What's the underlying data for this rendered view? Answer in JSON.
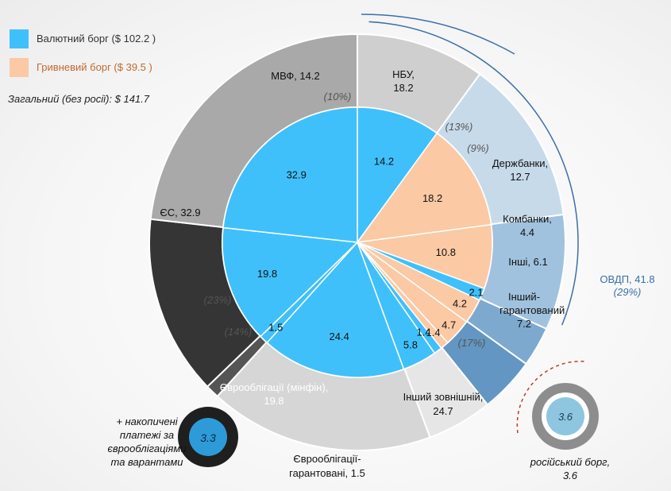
{
  "legend": {
    "fx_label": "Валютний борг ($ 102.2 )",
    "uah_label": "Гривневий борг ($ 39.5 )",
    "total_label": "Загальний (без росії): $ 141.7"
  },
  "colors": {
    "fx": "#40c0fb",
    "uah": "#fbc9a4",
    "imf": "#cfcfcf",
    "eu": "#a9a9a9",
    "eurobonds": "#353535",
    "eurobonds_guar": "#555555",
    "other_ext": "#d6d6d6",
    "other_guar": "#e6e6e6",
    "nbu": "#c7daea",
    "statebanks": "#a0c2df",
    "commbanks": "#7ea9cf",
    "others": "#6396c2",
    "russian": "#8ec6df"
  },
  "chart_data": {
    "type": "pie",
    "title": "",
    "inner_ring": [
      {
        "label": "14.2",
        "value": 14.2,
        "kind": "fx"
      },
      {
        "label": "18.2",
        "value": 18.2,
        "kind": "uah"
      },
      {
        "label": "10.8",
        "value": 10.8,
        "kind": "uah"
      },
      {
        "label": "2.1",
        "value": 2.1,
        "kind": "fx"
      },
      {
        "label": "4.2",
        "value": 4.2,
        "kind": "uah"
      },
      {
        "label": "4.7",
        "value": 4.7,
        "kind": "uah"
      },
      {
        "label": "1.4",
        "value": 1.4,
        "kind": "uah"
      },
      {
        "label": "1.4",
        "value": 1.4,
        "kind": "fx"
      },
      {
        "label": "5.8",
        "value": 5.8,
        "kind": "fx"
      },
      {
        "label": "24.4",
        "value": 24.4,
        "kind": "fx"
      },
      {
        "label": "1.5",
        "value": 1.5,
        "kind": "fx"
      },
      {
        "label": "19.8",
        "value": 19.8,
        "kind": "fx"
      },
      {
        "label": "32.9",
        "value": 32.9,
        "kind": "fx"
      }
    ],
    "outer_ring": [
      {
        "label": "МВФ, 14.2",
        "value": 14.2,
        "share": "(10%)",
        "color": "imf"
      },
      {
        "label": "НБУ, 18.2",
        "value": 18.2,
        "share": "(13%)",
        "color": "nbu"
      },
      {
        "label": "Держбанки, 12.7",
        "value": 12.7,
        "share": "(9%)",
        "color": "statebanks"
      },
      {
        "label": "Комбанки, 4.4",
        "value": 4.4,
        "share": "",
        "color": "commbanks"
      },
      {
        "label": "Інші, 6.1",
        "value": 6.1,
        "share": "",
        "color": "others"
      },
      {
        "label": "Інший-гарантований, 7.2",
        "value": 7.2,
        "share": "",
        "color": "other_guar"
      },
      {
        "label": "Інший зовнішній, 24.7",
        "value": 24.7,
        "share": "(17%)",
        "color": "other_ext"
      },
      {
        "label": "Єврооблігації-гарантовані, 1.5",
        "value": 1.5,
        "share": "",
        "color": "eurobonds_guar"
      },
      {
        "label": "Єврооблігації (мінфін), 19.8",
        "value": 19.8,
        "share": "(14%)",
        "color": "eurobonds"
      },
      {
        "label": "ЄС, 32.9",
        "value": 32.9,
        "share": "(23%)",
        "color": "eu"
      }
    ],
    "outer_text": {
      "imf": "МВФ, 14.2",
      "imf_share": "(10%)",
      "nbu_1": "НБУ,",
      "nbu_2": "18.2",
      "nbu_share": "(13%)",
      "statebanks_1": "Держбанки,",
      "statebanks_2": "12.7",
      "statebanks_share": "(9%)",
      "commbanks_1": "Комбанки,",
      "commbanks_2": "4.4",
      "others": "Інші, 6.1",
      "other_guar_1": "Інший-",
      "other_guar_2": "гарантований,",
      "other_guar_3": "7.2",
      "other_ext_1": "Інший зовнішній,",
      "other_ext_2": "24.7",
      "other_ext_share": "(17%)",
      "eurobonds_guar_1": "Єврооблігації-",
      "eurobonds_guar_2": "гарантовані, 1.5",
      "eurobonds_1": "Єврооблігації (мінфін),",
      "eurobonds_2": "19.8",
      "eurobonds_share": "(14%)",
      "eu": "ЄС, 32.9",
      "eu_share": "(23%)"
    },
    "ovdp": {
      "label": "ОВДП, 41.8",
      "share": "(29%)",
      "value": 41.8
    },
    "accumulated_payments": {
      "value": 3.3,
      "text": "3.3",
      "caption_lines": [
        "+ накопичені",
        "платежі за",
        "єврооблігаціями",
        "та варантами"
      ]
    },
    "russian_debt": {
      "value": 3.6,
      "text": "3.6",
      "caption_1": "російський борг,",
      "caption_2": "3.6"
    }
  }
}
